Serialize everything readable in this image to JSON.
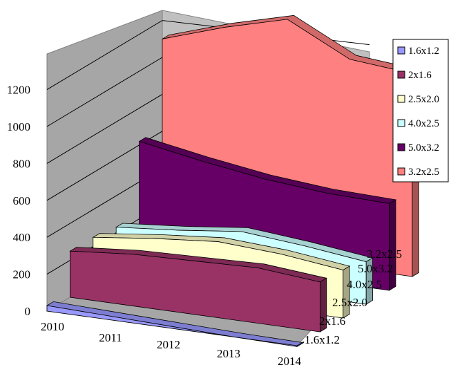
{
  "chart_data": {
    "type": "area",
    "title": "",
    "xlabel": "",
    "ylabel": "",
    "categories": [
      "2010",
      "2011",
      "2012",
      "2013",
      "2014"
    ],
    "y_ticks": [
      "0",
      "200",
      "400",
      "600",
      "800",
      "1000",
      "1200"
    ],
    "ylim": [
      0,
      1200
    ],
    "depth_labels": [
      "1.6x1.2",
      "2x1.6",
      "2.5x2.0",
      "4.0x2.5",
      "5.0x3.2",
      "3.2x2.5"
    ],
    "grid": true,
    "legend_position": "right",
    "series": [
      {
        "name": "1.6x1.2",
        "color": "#9999FF",
        "values": [
          30,
          20,
          10,
          0,
          -5
        ]
      },
      {
        "name": "2x1.6",
        "color": "#993366",
        "values": [
          250,
          280,
          290,
          300,
          270
        ]
      },
      {
        "name": "2.5x2.0",
        "color": "#FFFFCC",
        "values": [
          250,
          290,
          320,
          300,
          260
        ]
      },
      {
        "name": "4.0x2.5",
        "color": "#CCFFFF",
        "values": [
          230,
          260,
          300,
          270,
          230
        ]
      },
      {
        "name": "5.0x3.2",
        "color": "#660066",
        "values": [
          620,
          560,
          510,
          480,
          470
        ]
      },
      {
        "name": "3.2x2.5",
        "color": "#FF8080",
        "values": [
          1100,
          1210,
          1300,
          1130,
          1100
        ]
      }
    ]
  }
}
